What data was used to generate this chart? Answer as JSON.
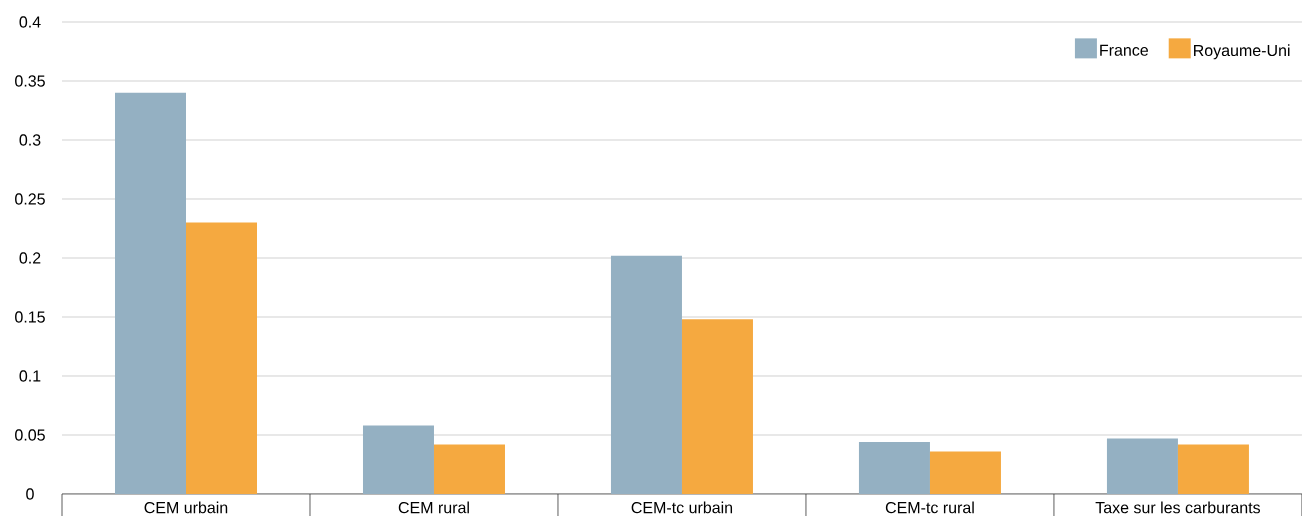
{
  "chart_data": {
    "type": "bar",
    "categories": [
      "CEM urbain",
      "CEM rural",
      "CEM-tc urbain",
      "CEM-tc rural",
      "Taxe sur les carburants"
    ],
    "series": [
      {
        "name": "France",
        "color": "#94b0c2",
        "values": [
          0.34,
          0.058,
          0.202,
          0.044,
          0.047
        ]
      },
      {
        "name": "Royaume-Uni",
        "color": "#f5a940",
        "values": [
          0.23,
          0.042,
          0.148,
          0.036,
          0.042
        ]
      }
    ],
    "ylim": [
      0,
      0.4
    ],
    "yticks": [
      0,
      0.05,
      0.1,
      0.15,
      0.2,
      0.25,
      0.3,
      0.35,
      0.4
    ],
    "grid": "y",
    "legend": "top right"
  }
}
